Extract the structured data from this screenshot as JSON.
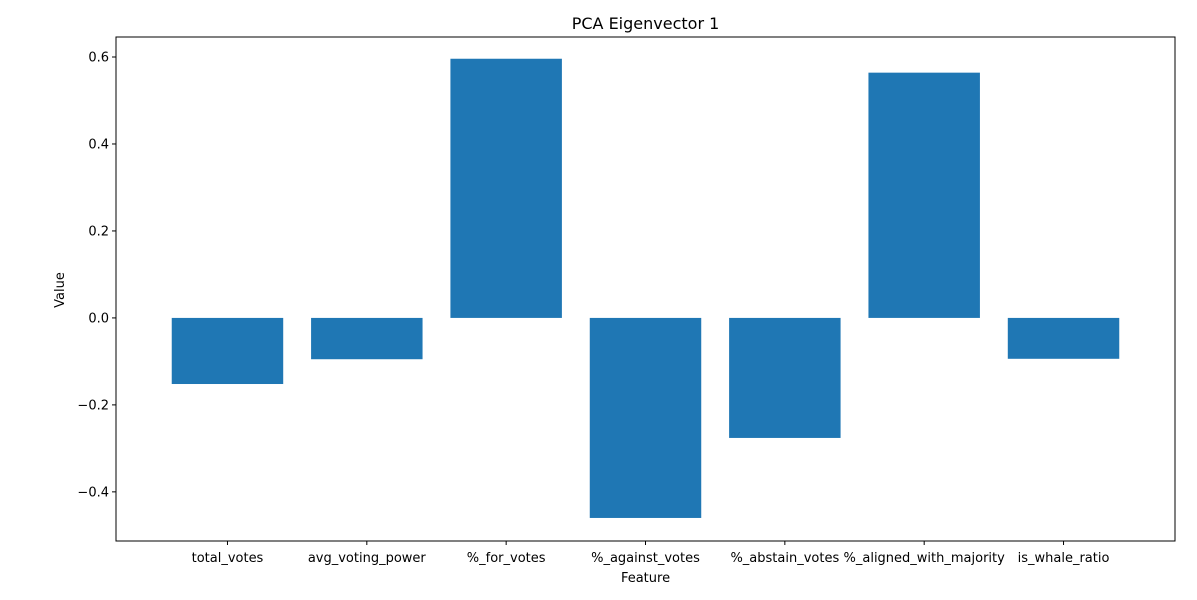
{
  "chart_data": {
    "type": "bar",
    "title": "PCA Eigenvector 1",
    "xlabel": "Feature",
    "ylabel": "Value",
    "categories": [
      "total_votes",
      "avg_voting_power",
      "%_for_votes",
      "%_against_votes",
      "%_abstain_votes",
      "%_aligned_with_majority",
      "is_whale_ratio"
    ],
    "values": [
      -0.152,
      -0.095,
      0.596,
      -0.46,
      -0.276,
      0.564,
      -0.094
    ],
    "ylim": [
      -0.513,
      0.646
    ],
    "yticks": [
      -0.4,
      -0.2,
      0.0,
      0.2,
      0.4,
      0.6
    ],
    "ytick_labels": [
      "−0.4",
      "−0.2",
      "0.0",
      "0.2",
      "0.4",
      "0.6"
    ],
    "bar_color": "#1f77b4",
    "grid": false,
    "legend": "none"
  }
}
